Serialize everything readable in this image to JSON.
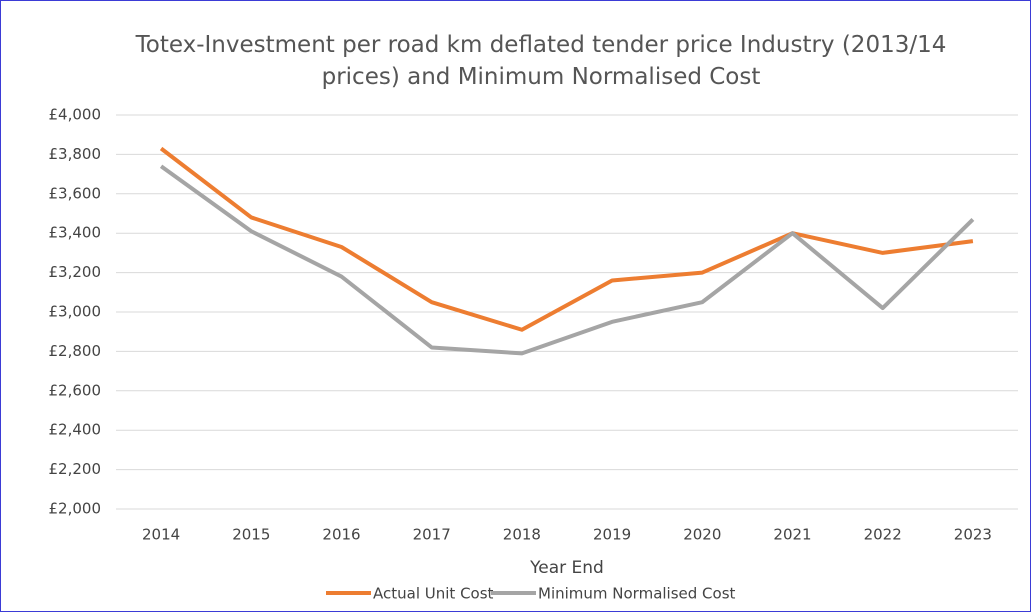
{
  "chart_data": {
    "type": "line",
    "title": "Totex-Investment per road km deflated tender price Industry (2013/14 prices) and Minimum Normalised Cost",
    "x_label": "Year End",
    "categories": [
      "2014",
      "2015",
      "2016",
      "2017",
      "2018",
      "2019",
      "2020",
      "2021",
      "2022",
      "2023"
    ],
    "series": [
      {
        "name": "Actual Unit Cost",
        "color": "#ed7d31",
        "values": [
          3830,
          3480,
          3330,
          3050,
          2910,
          3160,
          3200,
          3400,
          3300,
          3360
        ]
      },
      {
        "name": "Minimum Normalised Cost",
        "color": "#a5a5a5",
        "values": [
          3740,
          3410,
          3180,
          2820,
          2790,
          2950,
          3050,
          3400,
          3020,
          3470
        ]
      }
    ],
    "ylim": [
      2000,
      4000
    ],
    "yticks": [
      {
        "value": 2000,
        "label": "£2,000"
      },
      {
        "value": 2200,
        "label": "£2,200"
      },
      {
        "value": 2400,
        "label": "£2,400"
      },
      {
        "value": 2600,
        "label": "£2,600"
      },
      {
        "value": 2800,
        "label": "£2,800"
      },
      {
        "value": 3000,
        "label": "£3,000"
      },
      {
        "value": 3200,
        "label": "£3,200"
      },
      {
        "value": 3400,
        "label": "£3,400"
      },
      {
        "value": 3600,
        "label": "£3,600"
      },
      {
        "value": 3800,
        "label": "£3,800"
      },
      {
        "value": 4000,
        "label": "£4,000"
      }
    ],
    "grid": true,
    "legend": "bottom"
  }
}
